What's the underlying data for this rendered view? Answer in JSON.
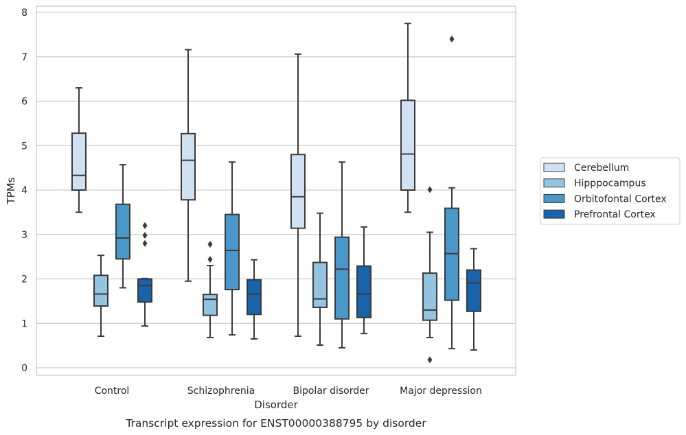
{
  "chart_data": {
    "type": "box",
    "caption": "Transcript expression for ENST00000388795 by disorder",
    "xlabel": "Disorder",
    "ylabel": "TPMs",
    "ylim": [
      -0.18,
      8.15
    ],
    "yticks": [
      0,
      1,
      2,
      3,
      4,
      5,
      6,
      7,
      8
    ],
    "grid": "horizontal",
    "legend_position": "right",
    "categories": [
      "Control",
      "Schizophrenia",
      "Bipolar disorder",
      "Major depression"
    ],
    "series": [
      {
        "name": "Cerebellum",
        "color": "#d0e1f2",
        "boxes": [
          {
            "category": "Control",
            "whislo": 3.5,
            "q1": 4.0,
            "med": 4.33,
            "q3": 5.28,
            "whishi": 6.3,
            "fliers": []
          },
          {
            "category": "Schizophrenia",
            "whislo": 1.95,
            "q1": 3.78,
            "med": 4.67,
            "q3": 5.27,
            "whishi": 7.16,
            "fliers": []
          },
          {
            "category": "Bipolar disorder",
            "whislo": 0.71,
            "q1": 3.14,
            "med": 3.85,
            "q3": 4.8,
            "whishi": 7.06,
            "fliers": []
          },
          {
            "category": "Major depression",
            "whislo": 3.5,
            "q1": 4.0,
            "med": 4.81,
            "q3": 6.02,
            "whishi": 7.75,
            "fliers": []
          }
        ]
      },
      {
        "name": "Hipppocampus",
        "color": "#94c4df",
        "boxes": [
          {
            "category": "Control",
            "whislo": 0.71,
            "q1": 1.39,
            "med": 1.66,
            "q3": 2.08,
            "whishi": 2.53,
            "fliers": []
          },
          {
            "category": "Schizophrenia",
            "whislo": 0.68,
            "q1": 1.18,
            "med": 1.54,
            "q3": 1.65,
            "whishi": 2.3,
            "fliers": [
              2.44,
              2.78
            ]
          },
          {
            "category": "Bipolar disorder",
            "whislo": 0.51,
            "q1": 1.36,
            "med": 1.55,
            "q3": 2.37,
            "whishi": 3.48,
            "fliers": []
          },
          {
            "category": "Major depression",
            "whislo": 0.68,
            "q1": 1.07,
            "med": 1.3,
            "q3": 2.13,
            "whishi": 3.05,
            "fliers": [
              0.18,
              4.01
            ]
          }
        ]
      },
      {
        "name": "Orbitofontal Cortex",
        "color": "#4a98c9",
        "boxes": [
          {
            "category": "Control",
            "whislo": 1.8,
            "q1": 2.45,
            "med": 2.92,
            "q3": 3.68,
            "whishi": 4.57,
            "fliers": []
          },
          {
            "category": "Schizophrenia",
            "whislo": 0.74,
            "q1": 1.76,
            "med": 2.64,
            "q3": 3.45,
            "whishi": 4.63,
            "fliers": []
          },
          {
            "category": "Bipolar disorder",
            "whislo": 0.45,
            "q1": 1.1,
            "med": 2.22,
            "q3": 2.94,
            "whishi": 4.63,
            "fliers": []
          },
          {
            "category": "Major depression",
            "whislo": 0.43,
            "q1": 1.52,
            "med": 2.57,
            "q3": 3.59,
            "whishi": 4.05,
            "fliers": [
              7.4
            ]
          }
        ]
      },
      {
        "name": "Prefrontal Cortex",
        "color": "#1764ab",
        "boxes": [
          {
            "category": "Control",
            "whislo": 0.94,
            "q1": 1.48,
            "med": 1.85,
            "q3": 2.0,
            "whishi": 2.01,
            "fliers": [
              2.8,
              2.98,
              3.2
            ]
          },
          {
            "category": "Schizophrenia",
            "whislo": 0.65,
            "q1": 1.2,
            "med": 1.66,
            "q3": 1.98,
            "whishi": 2.43,
            "fliers": []
          },
          {
            "category": "Bipolar disorder",
            "whislo": 0.77,
            "q1": 1.13,
            "med": 1.66,
            "q3": 2.29,
            "whishi": 3.17,
            "fliers": []
          },
          {
            "category": "Major depression",
            "whislo": 0.4,
            "q1": 1.27,
            "med": 1.91,
            "q3": 2.2,
            "whishi": 2.68,
            "fliers": []
          }
        ]
      }
    ]
  }
}
